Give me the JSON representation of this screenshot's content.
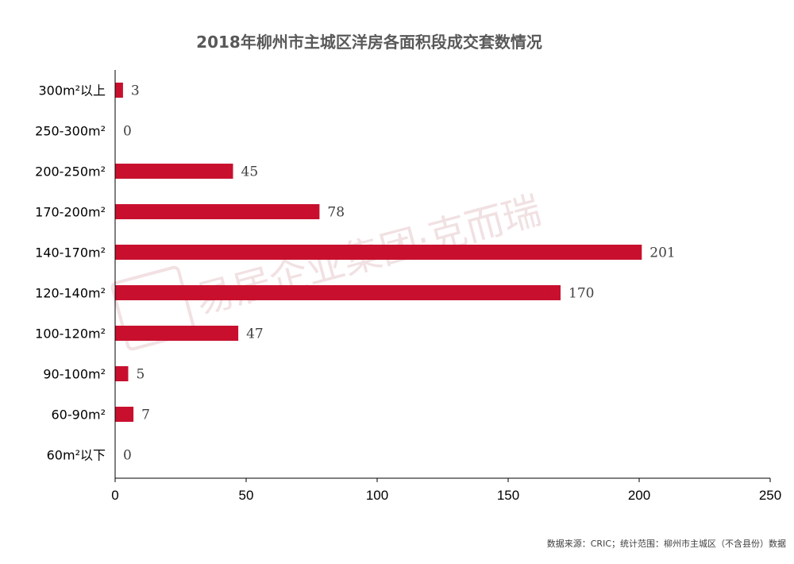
{
  "watermark": {
    "text": "易居企业集团·克而瑞"
  },
  "source_note": "数据来源：CRIC；统计范围：柳州市主城区（不含县份）数据",
  "colors": {
    "bar": "#c8102e",
    "axis": "#000000",
    "title": "#595959"
  },
  "chart_data": {
    "type": "bar",
    "orientation": "horizontal",
    "title": "2018年柳州市主城区洋房各面积段成交套数情况",
    "xlabel": "",
    "ylabel": "",
    "categories": [
      "300m²以上",
      "250-300m²",
      "200-250m²",
      "170-200m²",
      "140-170m²",
      "120-140m²",
      "100-120m²",
      "90-100m²",
      "60-90m²",
      "60m²以下"
    ],
    "values": [
      3,
      0,
      45,
      78,
      201,
      170,
      47,
      5,
      7,
      0
    ],
    "xlim": [
      0,
      250
    ],
    "xticks": [
      0,
      50,
      100,
      150,
      200,
      250
    ],
    "grid": false,
    "legend": "none",
    "data_labels": true
  }
}
